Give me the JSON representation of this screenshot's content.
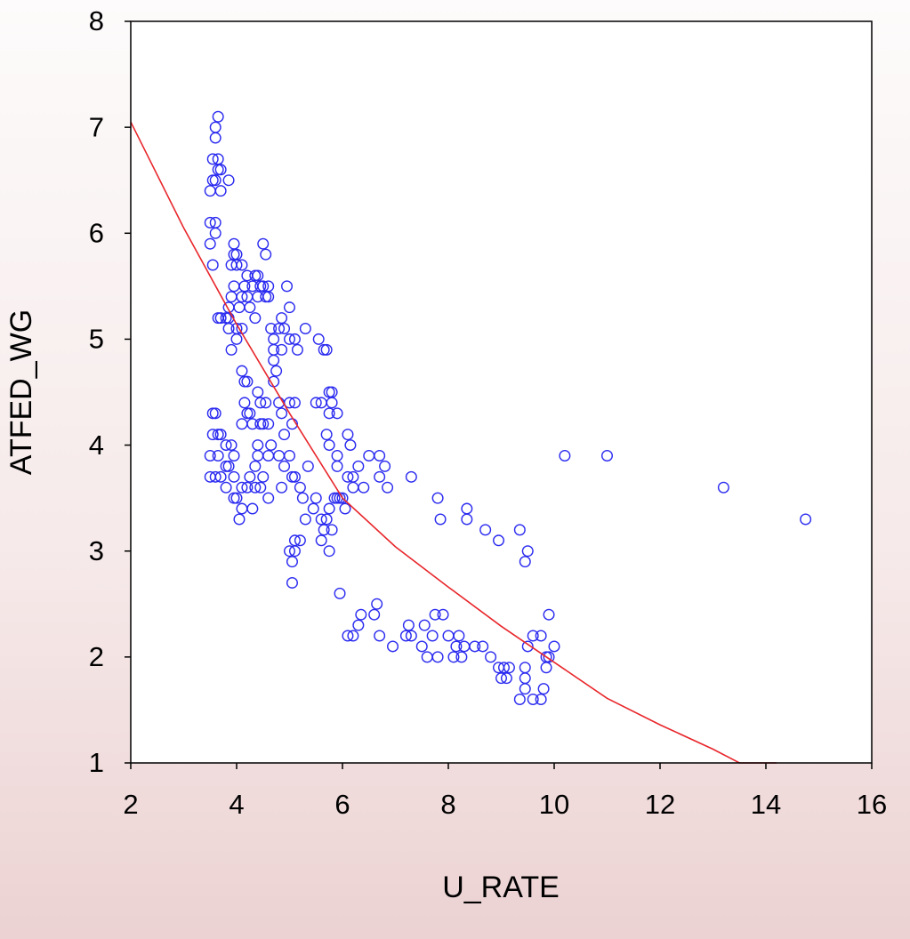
{
  "chart_data": {
    "type": "scatter",
    "xlabel": "U_RATE",
    "ylabel": "ATFED_WG",
    "color": "#2b2bf0",
    "xlim": [
      2,
      16
    ],
    "ylim": [
      1,
      8
    ],
    "xticks": [
      2,
      4,
      6,
      8,
      10,
      12,
      14,
      16
    ],
    "yticks": [
      1,
      2,
      3,
      4,
      5,
      6,
      7,
      8
    ],
    "x": [
      3.5,
      3.55,
      3.6,
      3.65,
      3.6,
      3.55,
      3.65,
      3.7,
      3.65,
      3.6,
      3.7,
      3.85,
      3.5,
      3.6,
      3.6,
      3.5,
      3.55,
      3.65,
      3.7,
      3.8,
      3.85,
      3.85,
      3.9,
      3.95,
      3.95,
      3.95,
      4.0,
      3.9,
      4.0,
      4.1,
      3.85,
      3.9,
      4.0,
      4.0,
      4.1,
      4.05,
      4.1,
      4.15,
      4.2,
      4.2,
      4.25,
      4.3,
      4.35,
      4.35,
      4.4,
      4.45,
      4.5,
      4.55,
      4.6,
      4.5,
      4.55,
      4.4,
      4.6,
      4.1,
      4.2,
      4.15,
      4.15,
      4.2,
      4.1,
      4.25,
      4.4,
      4.45,
      4.55,
      4.6,
      4.5,
      4.65,
      4.6,
      4.4,
      4.35,
      4.4,
      4.45,
      4.3,
      3.55,
      3.6,
      3.55,
      3.65,
      3.7,
      3.5,
      3.65,
      3.8,
      3.9,
      3.95,
      3.5,
      3.6,
      3.7,
      3.8,
      3.8,
      3.85,
      3.95,
      4.0,
      3.95,
      4.05,
      4.1,
      4.1,
      4.2,
      4.25,
      4.3,
      4.35,
      4.45,
      4.6,
      4.5,
      4.65,
      4.7,
      4.7,
      4.8,
      4.85,
      4.9,
      4.85,
      4.95,
      5.0,
      5.0,
      5.1,
      5.15,
      4.7,
      4.7,
      4.75,
      4.8,
      4.85,
      4.9,
      5.0,
      5.1,
      5.05,
      4.8,
      4.9,
      4.85,
      5.0,
      5.05,
      5.1,
      5.2,
      5.25,
      5.3,
      5.35,
      5.45,
      5.5,
      5.6,
      5.7,
      5.65,
      5.75,
      5.8,
      5.85,
      5.9,
      5.0,
      5.05,
      5.1,
      5.1,
      5.2,
      5.05,
      5.6,
      5.75,
      5.3,
      5.55,
      5.65,
      5.7,
      5.75,
      5.8,
      5.75,
      5.8,
      5.9,
      5.5,
      5.6,
      5.7,
      5.75,
      5.9,
      5.9,
      6.1,
      6.15,
      6.1,
      6.2,
      6.3,
      6.2,
      6.4,
      6.5,
      6.7,
      6.7,
      6.8,
      6.85,
      7.3,
      6.0,
      5.95,
      6.05,
      5.95,
      6.1,
      6.2,
      6.3,
      6.35,
      6.6,
      6.65,
      6.7,
      6.95,
      7.2,
      7.25,
      7.3,
      7.5,
      7.55,
      7.6,
      7.7,
      7.75,
      7.8,
      7.9,
      8.0,
      8.1,
      8.15,
      8.2,
      8.25,
      8.3,
      8.5,
      8.65,
      8.8,
      8.95,
      9.05,
      9.1,
      9.0,
      9.15,
      9.35,
      9.45,
      9.45,
      9.45,
      9.5,
      9.6,
      9.6,
      9.75,
      9.75,
      9.8,
      9.85,
      9.85,
      9.9,
      9.9,
      10.0,
      7.8,
      7.85,
      8.35,
      8.35,
      8.7,
      8.95,
      9.35,
      9.45,
      9.5,
      10.2,
      11.0,
      13.2,
      14.75
    ],
    "y": [
      6.4,
      6.5,
      7.0,
      7.1,
      6.9,
      6.7,
      6.7,
      6.6,
      6.6,
      6.5,
      6.4,
      6.5,
      6.1,
      6.1,
      6.0,
      5.9,
      5.7,
      5.2,
      5.2,
      5.2,
      5.2,
      5.3,
      5.4,
      5.5,
      5.8,
      5.9,
      5.8,
      5.7,
      5.7,
      5.7,
      5.1,
      4.9,
      5.0,
      5.1,
      5.1,
      5.3,
      5.4,
      5.5,
      5.6,
      5.4,
      5.3,
      5.5,
      5.6,
      5.2,
      5.4,
      5.5,
      5.5,
      5.4,
      5.5,
      5.9,
      5.8,
      5.6,
      5.4,
      4.7,
      4.6,
      4.6,
      4.4,
      4.3,
      4.2,
      4.3,
      4.5,
      4.4,
      4.4,
      4.2,
      4.2,
      4.0,
      3.9,
      4.0,
      3.8,
      3.9,
      4.2,
      4.2,
      4.3,
      4.3,
      4.1,
      4.1,
      4.1,
      3.9,
      3.9,
      4.0,
      4.0,
      3.9,
      3.7,
      3.7,
      3.7,
      3.6,
      3.8,
      3.8,
      3.7,
      3.5,
      3.5,
      3.3,
      3.4,
      3.6,
      3.6,
      3.7,
      3.4,
      3.6,
      3.6,
      3.5,
      3.7,
      5.1,
      4.9,
      5.0,
      5.1,
      5.2,
      5.1,
      4.9,
      5.5,
      5.3,
      5.0,
      5.0,
      4.9,
      4.8,
      4.6,
      4.7,
      4.4,
      4.3,
      4.1,
      4.4,
      4.4,
      4.2,
      3.9,
      3.8,
      3.6,
      3.9,
      3.7,
      3.7,
      3.6,
      3.5,
      3.3,
      3.8,
      3.4,
      3.5,
      3.3,
      3.3,
      3.2,
      3.4,
      3.2,
      3.5,
      3.5,
      3.0,
      2.9,
      3.0,
      3.1,
      3.1,
      2.7,
      3.1,
      3.0,
      5.1,
      5.0,
      4.9,
      4.9,
      4.5,
      4.5,
      4.3,
      4.4,
      4.3,
      4.4,
      4.4,
      4.1,
      4.0,
      3.9,
      3.8,
      4.1,
      4.0,
      3.7,
      3.7,
      3.8,
      3.6,
      3.6,
      3.9,
      3.9,
      3.7,
      3.8,
      3.6,
      3.7,
      3.5,
      3.5,
      3.4,
      2.6,
      2.2,
      2.2,
      2.3,
      2.4,
      2.4,
      2.5,
      2.2,
      2.1,
      2.2,
      2.3,
      2.2,
      2.1,
      2.3,
      2.0,
      2.2,
      2.4,
      2.0,
      2.4,
      2.2,
      2.0,
      2.1,
      2.2,
      2.0,
      2.1,
      2.1,
      2.1,
      2.0,
      1.9,
      1.9,
      1.8,
      1.8,
      1.9,
      1.6,
      1.7,
      1.8,
      1.9,
      2.1,
      2.2,
      1.6,
      2.2,
      1.6,
      1.7,
      1.9,
      2.0,
      2.4,
      2.0,
      2.1,
      3.5,
      3.3,
      3.4,
      3.3,
      3.2,
      3.1,
      3.2,
      2.9,
      3.0,
      3.9,
      3.9,
      3.6,
      3.3
    ],
    "fit_line": {
      "color": "#e8262b",
      "x": [
        2,
        3,
        4,
        5,
        6,
        7,
        8,
        9,
        10,
        11,
        12,
        13,
        13.5,
        14.2
      ],
      "y": [
        7.05,
        6.05,
        5.14,
        4.3,
        3.5,
        3.04,
        2.66,
        2.29,
        1.95,
        1.61,
        1.36,
        1.13,
        1.0,
        1.0
      ]
    }
  }
}
